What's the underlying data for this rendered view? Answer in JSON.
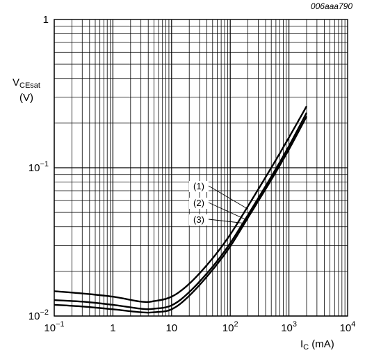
{
  "figure_code": "006aaa790",
  "chart_data": {
    "type": "line",
    "x_scale": "log",
    "y_scale": "log",
    "xlim": [
      0.1,
      10000
    ],
    "ylim": [
      0.01,
      1
    ],
    "grid": true,
    "ylabel_main": "V",
    "ylabel_sub": "CEsat",
    "ylabel_unit": "(V)",
    "xlabel_main": "I",
    "xlabel_sub": "C",
    "xlabel_unit": "(mA)",
    "x_ticks": [
      {
        "value": 0.1,
        "base": "10",
        "exp": "−1",
        "plain": ""
      },
      {
        "value": 1,
        "base": "",
        "exp": "",
        "plain": "1"
      },
      {
        "value": 10,
        "base": "",
        "exp": "",
        "plain": "10"
      },
      {
        "value": 100,
        "base": "10",
        "exp": "2",
        "plain": ""
      },
      {
        "value": 1000,
        "base": "10",
        "exp": "3",
        "plain": ""
      },
      {
        "value": 10000,
        "base": "10",
        "exp": "4",
        "plain": ""
      }
    ],
    "y_ticks": [
      {
        "value": 1,
        "base": "",
        "exp": "",
        "plain": "1"
      },
      {
        "value": 0.1,
        "base": "10",
        "exp": "−1",
        "plain": ""
      },
      {
        "value": 0.01,
        "base": "10",
        "exp": "−2",
        "plain": ""
      }
    ],
    "series": [
      {
        "label": "(1)",
        "x": [
          0.1,
          0.3,
          1,
          3,
          5,
          10,
          20,
          50,
          100,
          200,
          500,
          1000,
          2000
        ],
        "y": [
          0.0147,
          0.0142,
          0.0135,
          0.0125,
          0.0126,
          0.0135,
          0.0165,
          0.0245,
          0.0355,
          0.055,
          0.1,
          0.16,
          0.26
        ]
      },
      {
        "label": "(2)",
        "x": [
          0.1,
          0.3,
          1,
          3,
          5,
          10,
          20,
          50,
          100,
          200,
          500,
          1000,
          2000
        ],
        "y": [
          0.0128,
          0.0125,
          0.0119,
          0.0112,
          0.0112,
          0.0118,
          0.0145,
          0.0215,
          0.031,
          0.048,
          0.087,
          0.14,
          0.235
        ]
      },
      {
        "label": "(3)",
        "x": [
          0.1,
          0.3,
          1,
          3,
          5,
          10,
          20,
          50,
          100,
          200,
          500,
          1000,
          2000
        ],
        "y": [
          0.0119,
          0.0116,
          0.0111,
          0.0106,
          0.0106,
          0.0111,
          0.0137,
          0.0205,
          0.0295,
          0.046,
          0.083,
          0.133,
          0.222
        ]
      }
    ]
  }
}
